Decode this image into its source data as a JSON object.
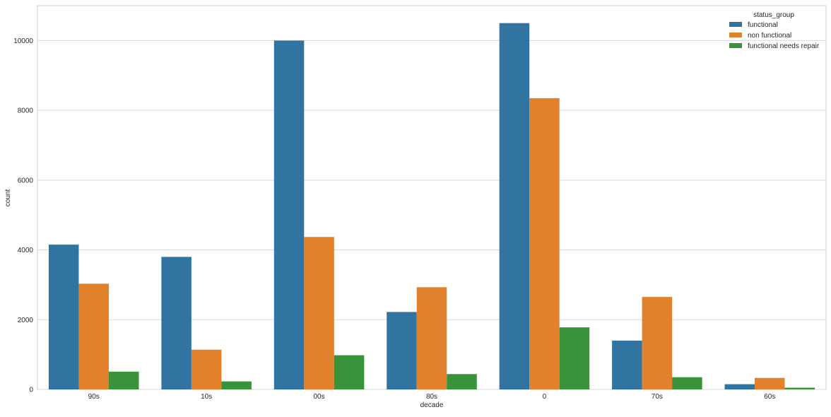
{
  "chart_data": {
    "type": "bar",
    "title": "",
    "xlabel": "decade",
    "ylabel": "count",
    "categories": [
      "90s",
      "10s",
      "00s",
      "80s",
      "0",
      "70s",
      "60s"
    ],
    "yticks": [
      "0",
      "2000",
      "4000",
      "6000",
      "8000",
      "10000"
    ],
    "ylim": [
      0,
      11000
    ],
    "grid": true,
    "legend_title": "status_group",
    "legend_position": "top-right",
    "series": [
      {
        "name": "functional",
        "color": "#3274a1",
        "values": [
          4150,
          3800,
          10000,
          2220,
          10500,
          1400,
          150
        ]
      },
      {
        "name": "non functional",
        "color": "#e1812c",
        "values": [
          3030,
          1140,
          4370,
          2930,
          8350,
          2650,
          330
        ]
      },
      {
        "name": "functional needs repair",
        "color": "#3a923a",
        "values": [
          510,
          230,
          980,
          440,
          1780,
          350,
          50
        ]
      }
    ]
  }
}
